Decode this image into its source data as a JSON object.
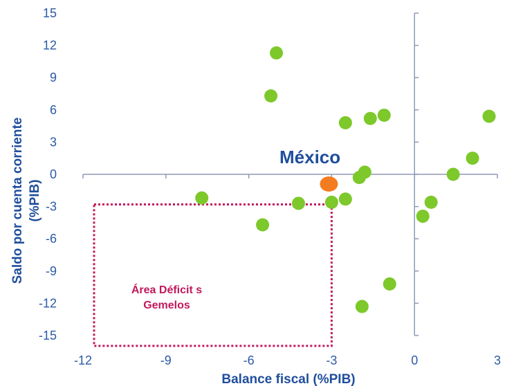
{
  "chart_data": {
    "type": "scatter",
    "xlabel": "Balance fiscal (%PIB)",
    "ylabel_line1": "Saldo por cuenta corriente",
    "ylabel_line2": "(%PIB)",
    "xlim": [
      -12,
      3
    ],
    "ylim": [
      -15,
      15
    ],
    "x_ticks": [
      -12,
      -9,
      -6,
      -3,
      0,
      3
    ],
    "y_ticks": [
      15,
      12,
      9,
      6,
      3,
      0,
      -3,
      -6,
      -9,
      -12,
      -15
    ],
    "grid": false,
    "colors": {
      "points": "#7dc82a",
      "highlight": "#f47c20",
      "axis": "#8c99b7",
      "text": "#2b5aa6",
      "area": "#c2185b"
    },
    "points": [
      {
        "x": -7.7,
        "y": -2.2
      },
      {
        "x": -5.5,
        "y": -4.7
      },
      {
        "x": -5.2,
        "y": 7.3
      },
      {
        "x": -5.0,
        "y": 11.3
      },
      {
        "x": -4.2,
        "y": -2.7
      },
      {
        "x": -3.0,
        "y": -2.6
      },
      {
        "x": -2.5,
        "y": 4.8
      },
      {
        "x": -2.5,
        "y": -2.3
      },
      {
        "x": -2.0,
        "y": -0.3
      },
      {
        "x": -1.8,
        "y": 0.2
      },
      {
        "x": -1.9,
        "y": -12.3
      },
      {
        "x": -1.6,
        "y": 5.2
      },
      {
        "x": -1.1,
        "y": 5.5
      },
      {
        "x": -0.9,
        "y": -10.2
      },
      {
        "x": 0.3,
        "y": -3.9
      },
      {
        "x": 0.6,
        "y": -2.6
      },
      {
        "x": 1.4,
        "y": 0.0
      },
      {
        "x": 2.1,
        "y": 1.5
      },
      {
        "x": 2.7,
        "y": 5.4
      }
    ],
    "highlight": {
      "label": "México",
      "x": -3.1,
      "y": -0.9
    },
    "area": {
      "label_line1": "Área Déficit s",
      "label_line2": "Gemelos",
      "x0": -11.6,
      "x1": -3.0,
      "y0": -2.8,
      "y1": -16.0
    }
  }
}
